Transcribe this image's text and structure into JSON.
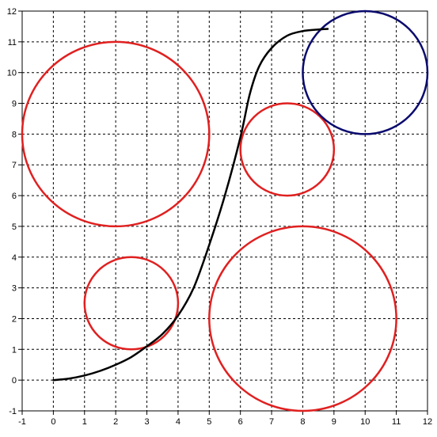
{
  "chart_data": {
    "type": "scatter",
    "title": "",
    "xlabel": "",
    "ylabel": "",
    "xlim": [
      -1,
      12
    ],
    "ylim": [
      -1,
      12
    ],
    "grid": true,
    "x_ticks": [
      -1,
      0,
      1,
      2,
      3,
      4,
      5,
      6,
      7,
      8,
      9,
      10,
      11,
      12
    ],
    "y_ticks": [
      -1,
      0,
      1,
      2,
      3,
      4,
      5,
      6,
      7,
      8,
      9,
      10,
      11,
      12
    ],
    "circles": [
      {
        "cx": 2,
        "cy": 8,
        "r": 3,
        "color": "#e02020"
      },
      {
        "cx": 2.5,
        "cy": 2.5,
        "r": 1.5,
        "color": "#e02020"
      },
      {
        "cx": 7.5,
        "cy": 7.5,
        "r": 1.5,
        "color": "#e02020"
      },
      {
        "cx": 8,
        "cy": 2,
        "r": 3,
        "color": "#e02020"
      },
      {
        "cx": 10,
        "cy": 10,
        "r": 2,
        "color": "#0a0a6e"
      }
    ],
    "path": {
      "color": "#000000",
      "points": [
        [
          0,
          0
        ],
        [
          0.5,
          0.05
        ],
        [
          1,
          0.15
        ],
        [
          1.5,
          0.3
        ],
        [
          2,
          0.5
        ],
        [
          2.5,
          0.75
        ],
        [
          3,
          1.1
        ],
        [
          3.5,
          1.5
        ],
        [
          4,
          2.1
        ],
        [
          4.5,
          3.0
        ],
        [
          5,
          4.4
        ],
        [
          5.5,
          6.0
        ],
        [
          6,
          7.9
        ],
        [
          6.3,
          9.3
        ],
        [
          6.6,
          10.2
        ],
        [
          7,
          10.8
        ],
        [
          7.5,
          11.2
        ],
        [
          8,
          11.35
        ],
        [
          8.5,
          11.4
        ],
        [
          8.8,
          11.42
        ]
      ]
    }
  }
}
